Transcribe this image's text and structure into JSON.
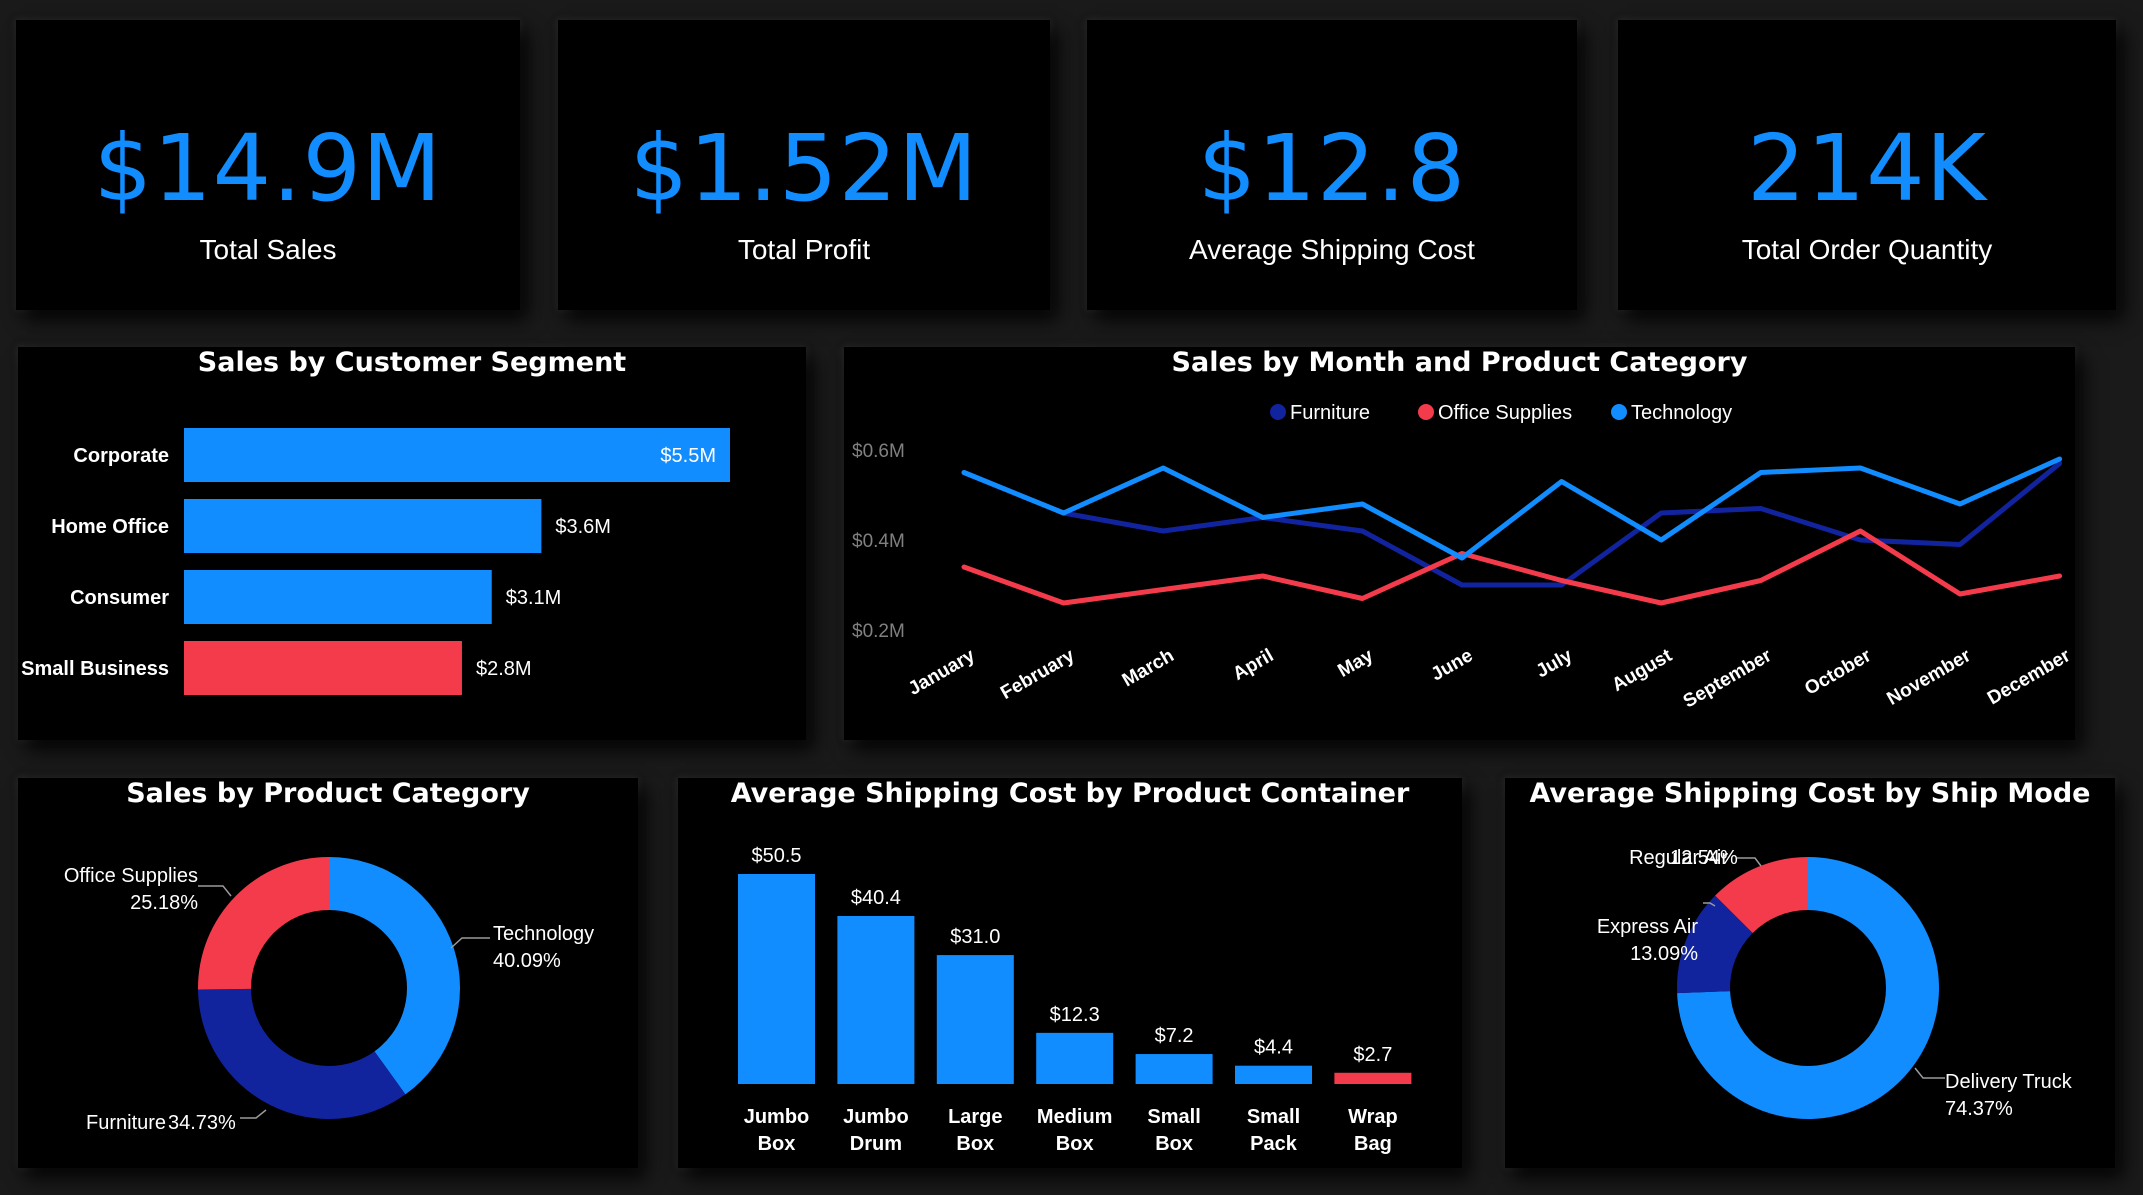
{
  "kpis": [
    {
      "value": "$14.9M",
      "label": "Total Sales"
    },
    {
      "value": "$1.52M",
      "label": "Total Profit"
    },
    {
      "value": "$12.8",
      "label": "Average Shipping Cost"
    },
    {
      "value": "214K",
      "label": "Total Order Quantity"
    }
  ],
  "colors": {
    "blue": "#118dff",
    "red": "#f43b4b",
    "navy": "#12239e",
    "background": "#000000",
    "axis_text": "#808080"
  },
  "chart_data": [
    {
      "type": "bar",
      "orientation": "horizontal",
      "title": "Sales by Customer Segment",
      "categories": [
        "Corporate",
        "Home Office",
        "Consumer",
        "Small Business"
      ],
      "values": [
        5.5,
        3.6,
        3.1,
        2.8
      ],
      "data_labels": [
        "$5.5M",
        "$3.6M",
        "$3.1M",
        "$2.8M"
      ],
      "bar_colors": [
        "#118dff",
        "#118dff",
        "#118dff",
        "#f43b4b"
      ]
    },
    {
      "type": "line",
      "title": "Sales by Month and Product Category",
      "x": [
        "January",
        "February",
        "March",
        "April",
        "May",
        "June",
        "July",
        "August",
        "September",
        "October",
        "November",
        "December"
      ],
      "series": [
        {
          "name": "Furniture",
          "color": "#12239e",
          "values": [
            0.55,
            0.46,
            0.42,
            0.45,
            0.42,
            0.3,
            0.3,
            0.46,
            0.47,
            0.4,
            0.39,
            0.57
          ]
        },
        {
          "name": "Office Supplies",
          "color": "#f43b4b",
          "values": [
            0.34,
            0.26,
            0.29,
            0.32,
            0.27,
            0.37,
            0.31,
            0.26,
            0.31,
            0.42,
            0.28,
            0.32
          ]
        },
        {
          "name": "Technology",
          "color": "#118dff",
          "values": [
            0.55,
            0.46,
            0.56,
            0.45,
            0.48,
            0.36,
            0.53,
            0.4,
            0.55,
            0.56,
            0.48,
            0.58
          ]
        }
      ],
      "yticks": [
        "$0.2M",
        "$0.4M",
        "$0.6M"
      ],
      "ylim": [
        0.2,
        0.6
      ],
      "legend": "top-center",
      "grid": false
    },
    {
      "type": "pie",
      "donut": true,
      "title": "Sales by Product Category",
      "slices": [
        {
          "name": "Technology",
          "label": "40.09%",
          "value": 40.09,
          "color": "#118dff"
        },
        {
          "name": "Furniture",
          "label": "34.73%",
          "value": 34.73,
          "color": "#12239e"
        },
        {
          "name": "Office Supplies",
          "label": "25.18%",
          "value": 25.18,
          "color": "#f43b4b"
        }
      ]
    },
    {
      "type": "bar",
      "title": "Average Shipping Cost by Product Container",
      "categories": [
        [
          "Jumbo",
          "Box"
        ],
        [
          "Jumbo",
          "Drum"
        ],
        [
          "Large",
          "Box"
        ],
        [
          "Medium",
          "Box"
        ],
        [
          "Small",
          "Box"
        ],
        [
          "Small",
          "Pack"
        ],
        [
          "Wrap",
          "Bag"
        ]
      ],
      "values": [
        50.5,
        40.4,
        31.0,
        12.3,
        7.2,
        4.4,
        2.7
      ],
      "data_labels": [
        "$50.5",
        "$40.4",
        "$31.0",
        "$12.3",
        "$7.2",
        "$4.4",
        "$2.7"
      ],
      "bar_colors": [
        "#118dff",
        "#118dff",
        "#118dff",
        "#118dff",
        "#118dff",
        "#118dff",
        "#f43b4b"
      ]
    },
    {
      "type": "pie",
      "donut": true,
      "title": "Average Shipping Cost by Ship Mode",
      "slices": [
        {
          "name": "Delivery Truck",
          "label": "74.37%",
          "value": 74.37,
          "color": "#118dff"
        },
        {
          "name": "Express Air",
          "label": "13.09%",
          "value": 13.09,
          "color": "#12239e"
        },
        {
          "name": "Regular Air",
          "label": "12.54%",
          "value": 12.54,
          "color": "#f43b4b"
        }
      ]
    }
  ]
}
